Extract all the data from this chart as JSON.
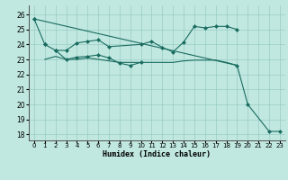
{
  "bg_color": "#c0e8e0",
  "grid_color": "#98ccc4",
  "line_color": "#1a6b60",
  "xlabel": "Humidex (Indice chaleur)",
  "xlim": [
    -0.5,
    23.5
  ],
  "ylim": [
    17.6,
    26.6
  ],
  "yticks": [
    18,
    19,
    20,
    21,
    22,
    23,
    24,
    25,
    26
  ],
  "xtick_labels": [
    "0",
    "1",
    "2",
    "3",
    "4",
    "5",
    "6",
    "7",
    "8",
    "9",
    "10",
    "11",
    "12",
    "13",
    "14",
    "15",
    "16",
    "17",
    "18",
    "19",
    "20",
    "21",
    "22",
    "23"
  ],
  "series1": {
    "x": [
      0,
      1
    ],
    "y": [
      25.7,
      24.0
    ],
    "marker": true
  },
  "series2": {
    "x": [
      1,
      2,
      3,
      4,
      5,
      6,
      7,
      10,
      11,
      12,
      13,
      14,
      15,
      16,
      17,
      18,
      19
    ],
    "y": [
      24.0,
      23.6,
      23.6,
      24.1,
      24.2,
      24.3,
      23.85,
      24.0,
      24.2,
      23.8,
      23.5,
      24.15,
      25.2,
      25.1,
      25.2,
      25.2,
      25.0
    ],
    "marker": true
  },
  "series3": {
    "x": [
      2,
      3,
      4,
      5,
      6,
      7,
      8,
      9,
      10
    ],
    "y": [
      23.6,
      23.0,
      23.15,
      23.2,
      23.3,
      23.1,
      22.75,
      22.6,
      22.8
    ],
    "marker": true
  },
  "series4_flat": {
    "x": [
      1,
      2,
      3,
      4,
      5,
      6,
      7,
      8,
      9,
      10,
      11,
      12,
      13,
      14,
      15,
      16,
      17,
      18,
      19
    ],
    "y": [
      23.0,
      23.2,
      23.0,
      23.0,
      23.1,
      23.0,
      22.9,
      22.8,
      22.8,
      22.8,
      22.8,
      22.8,
      22.8,
      22.9,
      22.95,
      22.95,
      22.95,
      22.8,
      22.6
    ],
    "marker": false
  },
  "series5_long": {
    "x": [
      0,
      19,
      20,
      22,
      23
    ],
    "y": [
      25.7,
      22.6,
      20.0,
      18.2,
      18.2
    ],
    "marker": true
  }
}
